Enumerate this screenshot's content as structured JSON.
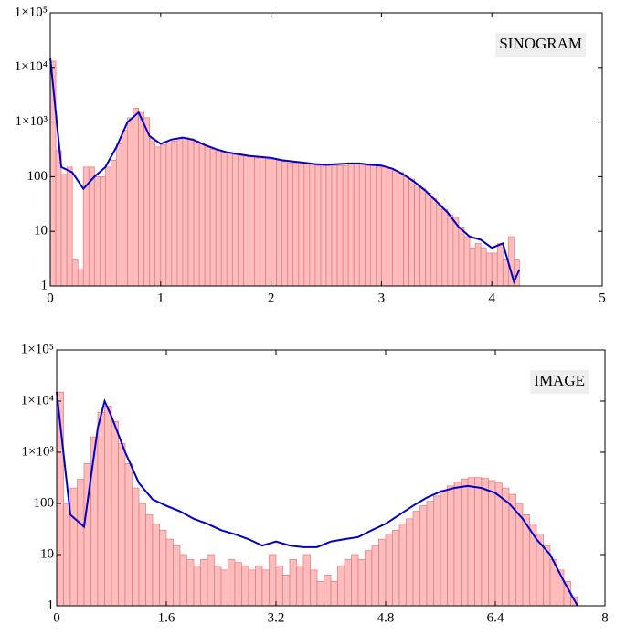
{
  "chart_data": [
    {
      "type": "histogram",
      "annotation": "SINOGRAM",
      "log_y": true,
      "color": "#ffbcbc",
      "edgecolor": "#e07878",
      "bins": [
        0,
        0.05,
        0.1,
        0.15,
        0.2,
        0.25,
        0.3,
        0.35,
        0.4,
        0.45,
        0.5,
        0.55,
        0.6,
        0.65,
        0.7,
        0.75,
        0.8,
        0.85,
        0.9,
        0.95,
        1.0,
        1.05,
        1.1,
        1.15,
        1.2,
        1.25,
        1.3,
        1.35,
        1.4,
        1.45,
        1.5,
        1.55,
        1.6,
        1.65,
        1.7,
        1.75,
        1.8,
        1.85,
        1.9,
        1.95,
        2.0,
        2.05,
        2.1,
        2.15,
        2.2,
        2.25,
        2.3,
        2.35,
        2.4,
        2.45,
        2.5,
        2.55,
        2.6,
        2.65,
        2.7,
        2.75,
        2.8,
        2.85,
        2.9,
        2.95,
        3.0,
        3.05,
        3.1,
        3.15,
        3.2,
        3.25,
        3.3,
        3.35,
        3.4,
        3.45,
        3.5,
        3.55,
        3.6,
        3.65,
        3.7,
        3.75,
        3.8,
        3.85,
        3.9,
        3.95,
        4.0,
        4.05,
        4.1,
        4.15,
        4.2,
        4.25
      ],
      "values": [
        13000,
        300,
        110,
        150,
        3,
        2,
        150,
        150,
        100,
        100,
        150,
        200,
        400,
        700,
        1200,
        1800,
        1500,
        1200,
        500,
        350,
        380,
        420,
        450,
        500,
        520,
        500,
        450,
        400,
        350,
        320,
        300,
        280,
        270,
        250,
        240,
        230,
        230,
        220,
        220,
        210,
        210,
        200,
        190,
        180,
        180,
        170,
        170,
        170,
        160,
        160,
        160,
        160,
        160,
        160,
        170,
        170,
        170,
        160,
        160,
        150,
        150,
        140,
        130,
        120,
        100,
        90,
        70,
        60,
        50,
        40,
        30,
        25,
        20,
        18,
        12,
        8,
        5,
        6,
        5,
        4,
        4,
        6,
        3,
        8,
        3
      ],
      "line": {
        "color": "#0000c8",
        "x": [
          0,
          0.1,
          0.2,
          0.3,
          0.4,
          0.5,
          0.6,
          0.7,
          0.8,
          0.9,
          1.0,
          1.1,
          1.2,
          1.3,
          1.4,
          1.5,
          1.6,
          1.7,
          1.8,
          1.9,
          2.0,
          2.1,
          2.2,
          2.3,
          2.4,
          2.5,
          2.6,
          2.7,
          2.8,
          2.9,
          3.0,
          3.1,
          3.2,
          3.3,
          3.4,
          3.5,
          3.6,
          3.7,
          3.8,
          3.9,
          4.0,
          4.1,
          4.2,
          4.25
        ],
        "values": [
          15000,
          150,
          120,
          60,
          100,
          150,
          350,
          1000,
          1500,
          550,
          400,
          480,
          520,
          470,
          380,
          320,
          280,
          260,
          240,
          230,
          220,
          200,
          190,
          180,
          170,
          165,
          170,
          175,
          175,
          165,
          160,
          140,
          110,
          80,
          55,
          35,
          22,
          12,
          8,
          7,
          5,
          6,
          1.2,
          2
        ]
      },
      "xlim": [
        0,
        5
      ],
      "ylim": [
        1,
        100000
      ],
      "xticks": [
        0,
        1,
        2,
        3,
        4,
        5
      ],
      "yticks": [
        1,
        10,
        100,
        {
          "value": 1000,
          "label": "1×10³"
        },
        {
          "value": 10000,
          "label": "1×10⁴"
        },
        {
          "value": 100000,
          "label": "1×10⁵"
        }
      ]
    },
    {
      "type": "histogram",
      "annotation": "IMAGE",
      "log_y": true,
      "color": "#ffbcbc",
      "edgecolor": "#e07878",
      "bins": [
        0,
        0.1,
        0.2,
        0.3,
        0.4,
        0.5,
        0.6,
        0.7,
        0.8,
        0.9,
        1.0,
        1.1,
        1.2,
        1.3,
        1.4,
        1.5,
        1.6,
        1.7,
        1.8,
        1.9,
        2.0,
        2.1,
        2.2,
        2.3,
        2.4,
        2.5,
        2.6,
        2.7,
        2.8,
        2.9,
        3.0,
        3.1,
        3.2,
        3.3,
        3.4,
        3.5,
        3.6,
        3.7,
        3.8,
        3.9,
        4.0,
        4.1,
        4.2,
        4.3,
        4.4,
        4.5,
        4.6,
        4.7,
        4.8,
        4.9,
        5.0,
        5.1,
        5.2,
        5.3,
        5.4,
        5.5,
        5.6,
        5.7,
        5.8,
        5.9,
        6.0,
        6.1,
        6.2,
        6.3,
        6.4,
        6.5,
        6.6,
        6.7,
        6.8,
        6.9,
        7.0,
        7.1,
        7.2,
        7.3,
        7.4,
        7.5,
        7.6
      ],
      "values": [
        15000,
        100,
        200,
        300,
        600,
        2000,
        6000,
        8000,
        4000,
        1500,
        600,
        200,
        100,
        60,
        40,
        30,
        20,
        15,
        10,
        8,
        6,
        8,
        10,
        6,
        5,
        8,
        7,
        6,
        5,
        6,
        5,
        10,
        6,
        4,
        8,
        6,
        10,
        5,
        3,
        4,
        3,
        6,
        8,
        10,
        8,
        12,
        15,
        20,
        25,
        30,
        40,
        50,
        70,
        90,
        110,
        140,
        180,
        220,
        260,
        300,
        320,
        320,
        310,
        280,
        250,
        200,
        150,
        100,
        60,
        40,
        25,
        15,
        8,
        5,
        3,
        1.5
      ],
      "line": {
        "color": "#0000c8",
        "x": [
          0,
          0.2,
          0.4,
          0.6,
          0.7,
          0.8,
          1.0,
          1.2,
          1.4,
          1.6,
          1.8,
          2.0,
          2.2,
          2.4,
          2.6,
          2.8,
          3.0,
          3.2,
          3.4,
          3.6,
          3.8,
          4.0,
          4.2,
          4.4,
          4.6,
          4.8,
          5.0,
          5.2,
          5.4,
          5.6,
          5.8,
          6.0,
          6.2,
          6.4,
          6.6,
          6.8,
          7.0,
          7.2,
          7.4,
          7.6
        ],
        "values": [
          15000,
          60,
          35,
          3000,
          10000,
          5000,
          1000,
          250,
          120,
          90,
          70,
          50,
          40,
          30,
          25,
          20,
          15,
          18,
          15,
          14,
          14,
          18,
          20,
          22,
          30,
          40,
          60,
          90,
          130,
          170,
          200,
          220,
          200,
          160,
          100,
          50,
          20,
          10,
          3,
          1
        ]
      },
      "xlim": [
        0,
        8
      ],
      "ylim": [
        1,
        100000
      ],
      "xticks": [
        0,
        1.6,
        3.2,
        4.8,
        6.4,
        8
      ],
      "yticks": [
        1,
        10,
        100,
        {
          "value": 1000,
          "label": "1×10³"
        },
        {
          "value": 10000,
          "label": "1×10⁴"
        },
        {
          "value": 100000,
          "label": "1×10⁵"
        }
      ]
    }
  ]
}
